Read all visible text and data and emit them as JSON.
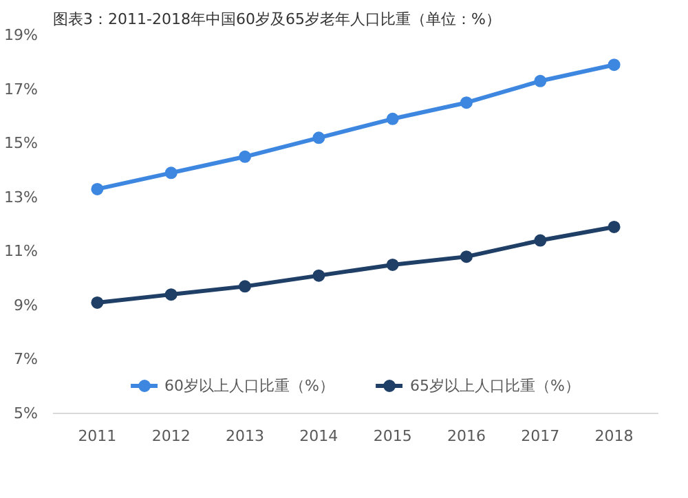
{
  "chart_data": {
    "type": "line",
    "title": "图表3：2011-2018年中国60岁及65岁老年人口比重（单位：%）",
    "categories": [
      "2011",
      "2012",
      "2013",
      "2014",
      "2015",
      "2016",
      "2017",
      "2018"
    ],
    "series": [
      {
        "name": "60岁以上人口比重（%）",
        "color": "#3d87e0",
        "values": [
          13.3,
          13.9,
          14.5,
          15.2,
          15.9,
          16.5,
          17.3,
          17.9
        ]
      },
      {
        "name": "65岁以上人口比重（%）",
        "color": "#1f3f66",
        "values": [
          9.1,
          9.4,
          9.7,
          10.1,
          10.5,
          10.8,
          11.4,
          11.9
        ]
      }
    ],
    "ylim": [
      5,
      19
    ],
    "yticks": [
      {
        "value": 5,
        "label": "5%"
      },
      {
        "value": 7,
        "label": "7%"
      },
      {
        "value": 9,
        "label": "9%"
      },
      {
        "value": 11,
        "label": "11%"
      },
      {
        "value": 13,
        "label": "13%"
      },
      {
        "value": 15,
        "label": "15%"
      },
      {
        "value": 17,
        "label": "17%"
      },
      {
        "value": 19,
        "label": "19%"
      }
    ],
    "grid": false,
    "legend": "bottom",
    "marker": "circle",
    "line_style": "solid"
  }
}
